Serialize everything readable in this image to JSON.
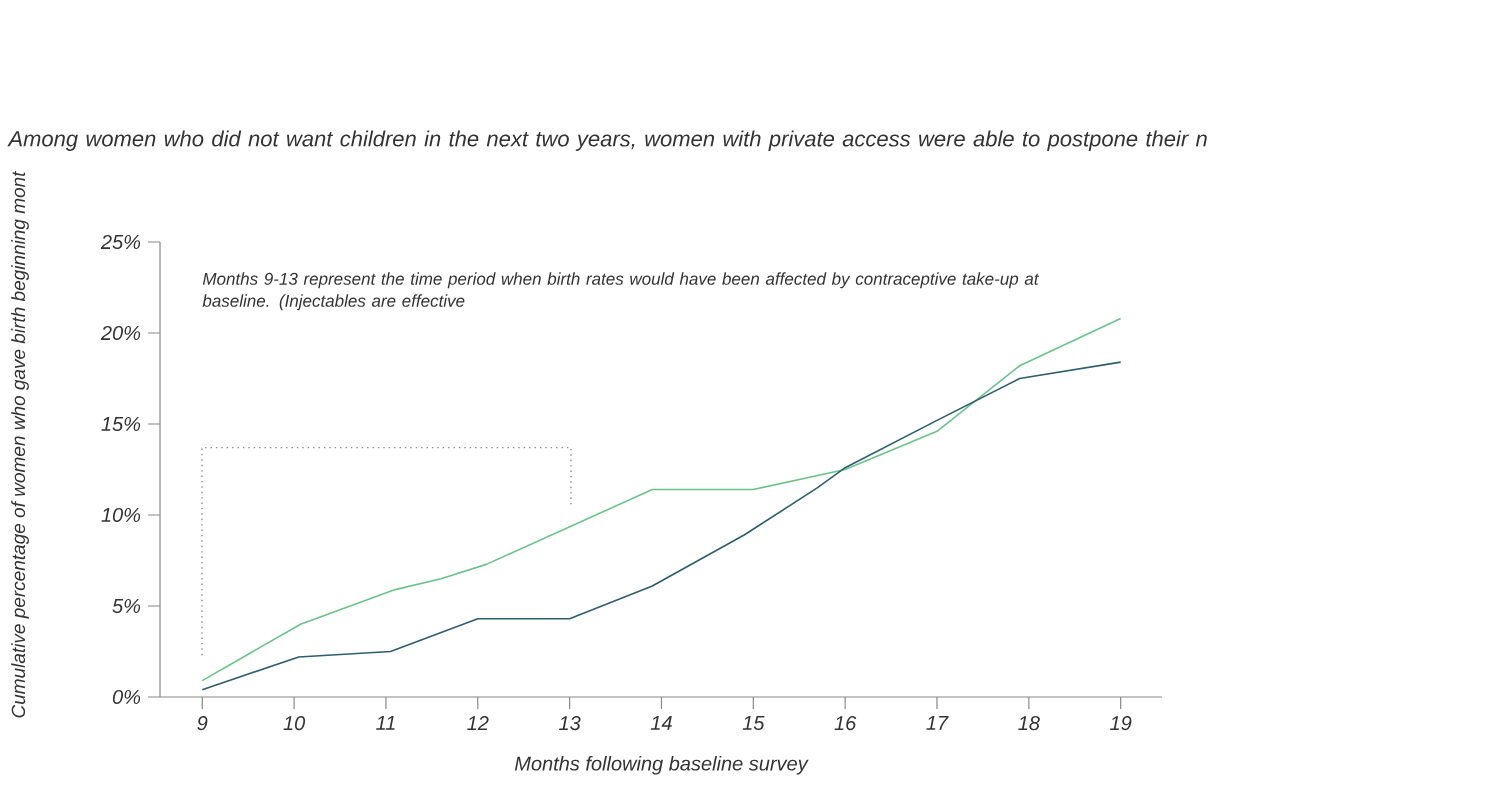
{
  "chart_data": {
    "type": "line",
    "title": "Among women who did not want children in the next two years, women with private access were able to postpone their n",
    "ylabel": "Cumulative percentage of women who gave birth beginning mont",
    "xlabel": "Months following baseline survey",
    "annotations": [
      "Months 9-13 represent the time period when birth rates would have been affected by contraceptive take-up at baseline. (Injectables are effective"
    ],
    "xlim": [
      8.54,
      19.45
    ],
    "xticks": [
      9,
      10,
      11,
      12,
      13,
      14,
      15,
      16,
      17,
      18,
      19
    ],
    "ylim": [
      0,
      25
    ],
    "yticks": [
      {
        "value": 0,
        "label": "0%"
      },
      {
        "value": 5,
        "label": "5%"
      },
      {
        "value": 10,
        "label": "10%"
      },
      {
        "value": 15,
        "label": "15%"
      },
      {
        "value": 20,
        "label": "20%"
      },
      {
        "value": 25,
        "label": "25%"
      }
    ],
    "series": [
      {
        "color": "#6cc38a",
        "x": [
          9,
          10.07,
          11.1,
          11.6,
          12.1,
          13.9,
          15,
          16,
          17,
          17.9,
          19
        ],
        "values": [
          0.9,
          4.0,
          5.9,
          6.5,
          7.3,
          11.4,
          11.4,
          12.5,
          14.6,
          18.2,
          20.8
        ]
      },
      {
        "color": "#2e5e6e",
        "x": [
          9,
          10.05,
          11.05,
          12,
          13,
          13.9,
          14.9,
          15.7,
          16,
          17,
          17.9,
          19
        ],
        "values": [
          0.4,
          2.2,
          2.5,
          4.3,
          4.3,
          6.1,
          8.9,
          11.5,
          12.6,
          15.2,
          17.5,
          18.4
        ]
      }
    ]
  }
}
